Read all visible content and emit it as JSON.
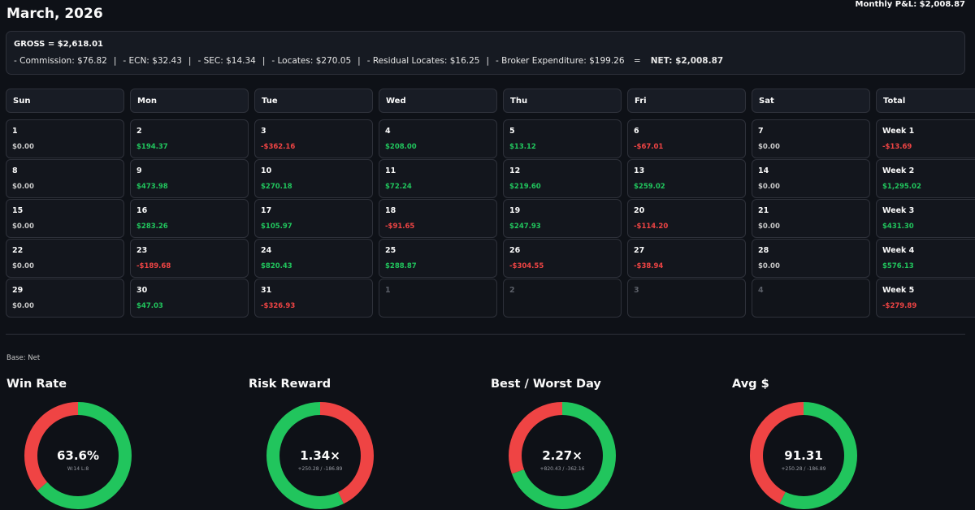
{
  "header": {
    "title": "March, 2026",
    "monthly_pnl": "Monthly P&L: $2,008.87"
  },
  "summary": {
    "gross": "GROSS = $2,618.01",
    "items": [
      "- Commission: $76.82",
      "- ECN: $32.43",
      "- SEC: $14.34",
      "- Locates: $270.05",
      "- Residual Locates: $16.25",
      "- Broker Expenditure: $199.26"
    ],
    "equals": "=",
    "net": "NET: $2,008.87",
    "separator": "|"
  },
  "calendar": {
    "headers": [
      "Sun",
      "Mon",
      "Tue",
      "Wed",
      "Thu",
      "Fri",
      "Sat",
      "Total"
    ],
    "weeks": [
      [
        {
          "day": "1",
          "amount": "$0.00",
          "sign": "zero"
        },
        {
          "day": "2",
          "amount": "$194.37",
          "sign": "pos"
        },
        {
          "day": "3",
          "amount": "-$362.16",
          "sign": "neg"
        },
        {
          "day": "4",
          "amount": "$208.00",
          "sign": "pos"
        },
        {
          "day": "5",
          "amount": "$13.12",
          "sign": "pos"
        },
        {
          "day": "6",
          "amount": "-$67.01",
          "sign": "neg"
        },
        {
          "day": "7",
          "amount": "$0.00",
          "sign": "zero"
        },
        {
          "day": "Week 1",
          "amount": "-$13.69",
          "sign": "neg"
        }
      ],
      [
        {
          "day": "8",
          "amount": "$0.00",
          "sign": "zero"
        },
        {
          "day": "9",
          "amount": "$473.98",
          "sign": "pos"
        },
        {
          "day": "10",
          "amount": "$270.18",
          "sign": "pos"
        },
        {
          "day": "11",
          "amount": "$72.24",
          "sign": "pos"
        },
        {
          "day": "12",
          "amount": "$219.60",
          "sign": "pos"
        },
        {
          "day": "13",
          "amount": "$259.02",
          "sign": "pos"
        },
        {
          "day": "14",
          "amount": "$0.00",
          "sign": "zero"
        },
        {
          "day": "Week 2",
          "amount": "$1,295.02",
          "sign": "pos"
        }
      ],
      [
        {
          "day": "15",
          "amount": "$0.00",
          "sign": "zero"
        },
        {
          "day": "16",
          "amount": "$283.26",
          "sign": "pos"
        },
        {
          "day": "17",
          "amount": "$105.97",
          "sign": "pos"
        },
        {
          "day": "18",
          "amount": "-$91.65",
          "sign": "neg"
        },
        {
          "day": "19",
          "amount": "$247.93",
          "sign": "pos"
        },
        {
          "day": "20",
          "amount": "-$114.20",
          "sign": "neg"
        },
        {
          "day": "21",
          "amount": "$0.00",
          "sign": "zero"
        },
        {
          "day": "Week 3",
          "amount": "$431.30",
          "sign": "pos"
        }
      ],
      [
        {
          "day": "22",
          "amount": "$0.00",
          "sign": "zero"
        },
        {
          "day": "23",
          "amount": "-$189.68",
          "sign": "neg"
        },
        {
          "day": "24",
          "amount": "$820.43",
          "sign": "pos"
        },
        {
          "day": "25",
          "amount": "$288.87",
          "sign": "pos"
        },
        {
          "day": "26",
          "amount": "-$304.55",
          "sign": "neg"
        },
        {
          "day": "27",
          "amount": "-$38.94",
          "sign": "neg"
        },
        {
          "day": "28",
          "amount": "$0.00",
          "sign": "zero"
        },
        {
          "day": "Week 4",
          "amount": "$576.13",
          "sign": "pos"
        }
      ],
      [
        {
          "day": "29",
          "amount": "$0.00",
          "sign": "zero"
        },
        {
          "day": "30",
          "amount": "$47.03",
          "sign": "pos"
        },
        {
          "day": "31",
          "amount": "-$326.93",
          "sign": "neg"
        },
        {
          "day": "1",
          "amount": "",
          "sign": "faded"
        },
        {
          "day": "2",
          "amount": "",
          "sign": "faded"
        },
        {
          "day": "3",
          "amount": "",
          "sign": "faded"
        },
        {
          "day": "4",
          "amount": "",
          "sign": "faded"
        },
        {
          "day": "Week 5",
          "amount": "-$279.89",
          "sign": "neg"
        }
      ]
    ]
  },
  "base_label": "Base: Net",
  "colors": {
    "positive": "#21c55d",
    "negative": "#ef4444",
    "zero": "#c8c8c8"
  },
  "metrics": [
    {
      "title": "Win Rate",
      "value": "63.6%",
      "sub": "W:14 L:8",
      "green_fraction": 0.636,
      "start": "green"
    },
    {
      "title": "Risk Reward",
      "value": "1.34×",
      "sub": "+250.28 / -186.89",
      "green_fraction": 0.573,
      "start": "red"
    },
    {
      "title": "Best / Worst Day",
      "value": "2.27×",
      "sub": "+820.43 / -362.16",
      "green_fraction": 0.694,
      "start": "green"
    },
    {
      "title": "Avg $",
      "value": "91.31",
      "sub": "+250.28 / -186.89",
      "green_fraction": 0.573,
      "start": "green"
    }
  ]
}
